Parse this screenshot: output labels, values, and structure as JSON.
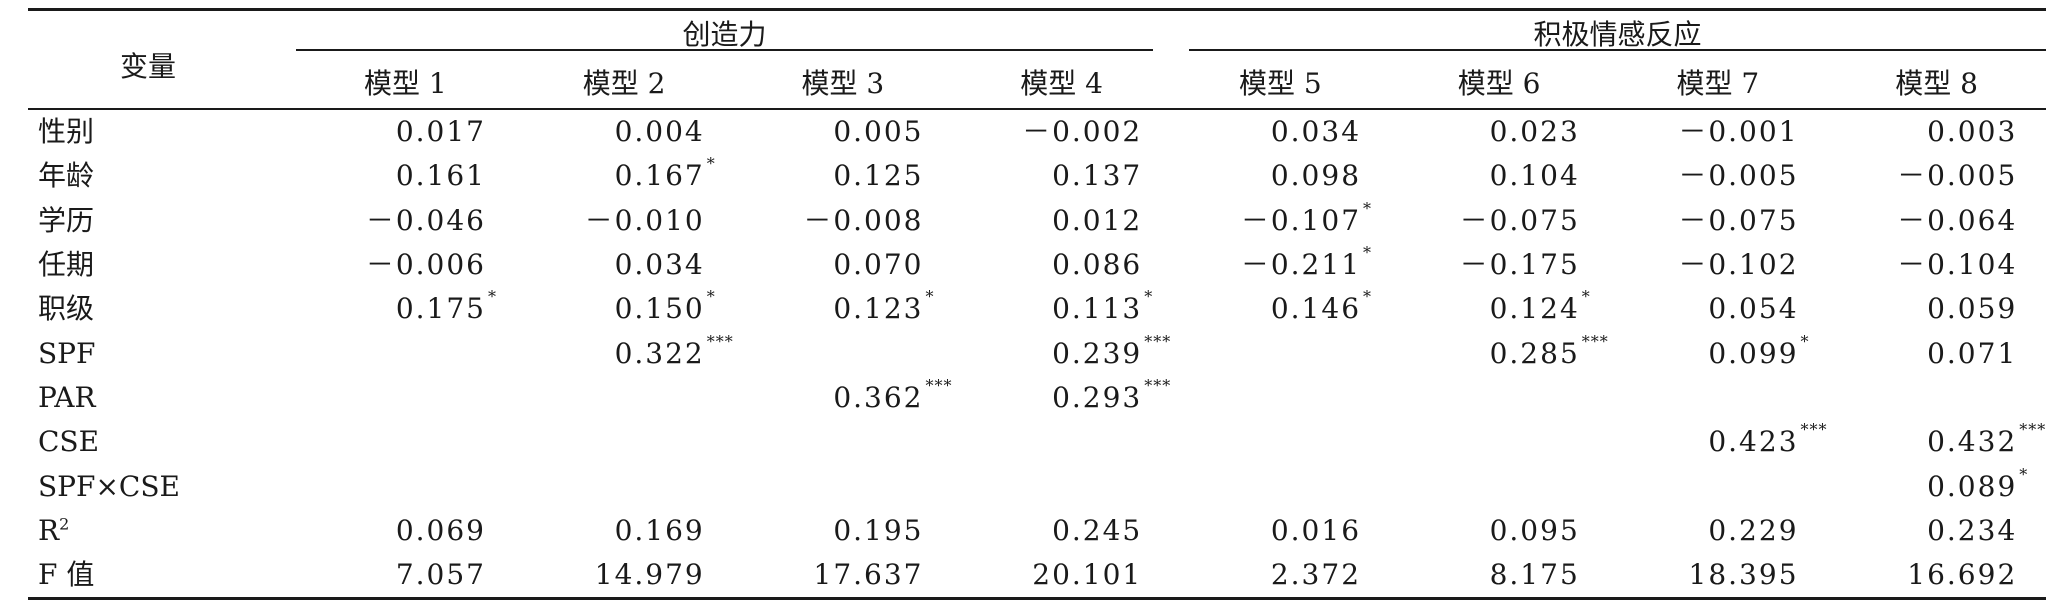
{
  "header": {
    "var_label": "变量",
    "groups": [
      {
        "label": "创造力"
      },
      {
        "label": "积极情感反应"
      }
    ],
    "models": [
      "模型 1",
      "模型 2",
      "模型 3",
      "模型 4",
      "模型 5",
      "模型 6",
      "模型 7",
      "模型 8"
    ]
  },
  "rows": [
    {
      "label": "性别",
      "cells": [
        {
          "v": "0.017",
          "s": ""
        },
        {
          "v": "0.004",
          "s": ""
        },
        {
          "v": "0.005",
          "s": ""
        },
        {
          "v": "－0.002",
          "s": ""
        },
        {
          "v": "0.034",
          "s": ""
        },
        {
          "v": "0.023",
          "s": ""
        },
        {
          "v": "－0.001",
          "s": ""
        },
        {
          "v": "0.003",
          "s": ""
        }
      ]
    },
    {
      "label": "年龄",
      "cells": [
        {
          "v": "0.161",
          "s": ""
        },
        {
          "v": "0.167",
          "s": "*"
        },
        {
          "v": "0.125",
          "s": ""
        },
        {
          "v": "0.137",
          "s": ""
        },
        {
          "v": "0.098",
          "s": ""
        },
        {
          "v": "0.104",
          "s": ""
        },
        {
          "v": "－0.005",
          "s": ""
        },
        {
          "v": "－0.005",
          "s": ""
        }
      ]
    },
    {
      "label": "学历",
      "cells": [
        {
          "v": "－0.046",
          "s": ""
        },
        {
          "v": "－0.010",
          "s": ""
        },
        {
          "v": "－0.008",
          "s": ""
        },
        {
          "v": "0.012",
          "s": ""
        },
        {
          "v": "－0.107",
          "s": "*"
        },
        {
          "v": "－0.075",
          "s": ""
        },
        {
          "v": "－0.075",
          "s": ""
        },
        {
          "v": "－0.064",
          "s": ""
        }
      ]
    },
    {
      "label": "任期",
      "cells": [
        {
          "v": "－0.006",
          "s": ""
        },
        {
          "v": "0.034",
          "s": ""
        },
        {
          "v": "0.070",
          "s": ""
        },
        {
          "v": "0.086",
          "s": ""
        },
        {
          "v": "－0.211",
          "s": "*"
        },
        {
          "v": "－0.175",
          "s": ""
        },
        {
          "v": "－0.102",
          "s": ""
        },
        {
          "v": "－0.104",
          "s": ""
        }
      ]
    },
    {
      "label": "职级",
      "cells": [
        {
          "v": "0.175",
          "s": "*"
        },
        {
          "v": "0.150",
          "s": "*"
        },
        {
          "v": "0.123",
          "s": "*"
        },
        {
          "v": "0.113",
          "s": "*"
        },
        {
          "v": "0.146",
          "s": "*"
        },
        {
          "v": "0.124",
          "s": "*"
        },
        {
          "v": "0.054",
          "s": ""
        },
        {
          "v": "0.059",
          "s": ""
        }
      ]
    },
    {
      "label": "SPF",
      "cells": [
        {
          "v": "",
          "s": ""
        },
        {
          "v": "0.322",
          "s": "***"
        },
        {
          "v": "",
          "s": ""
        },
        {
          "v": "0.239",
          "s": "***"
        },
        {
          "v": "",
          "s": ""
        },
        {
          "v": "0.285",
          "s": "***"
        },
        {
          "v": "0.099",
          "s": "*"
        },
        {
          "v": "0.071",
          "s": ""
        }
      ]
    },
    {
      "label": "PAR",
      "cells": [
        {
          "v": "",
          "s": ""
        },
        {
          "v": "",
          "s": ""
        },
        {
          "v": "0.362",
          "s": "***"
        },
        {
          "v": "0.293",
          "s": "***"
        },
        {
          "v": "",
          "s": ""
        },
        {
          "v": "",
          "s": ""
        },
        {
          "v": "",
          "s": ""
        },
        {
          "v": "",
          "s": ""
        }
      ]
    },
    {
      "label": "CSE",
      "cells": [
        {
          "v": "",
          "s": ""
        },
        {
          "v": "",
          "s": ""
        },
        {
          "v": "",
          "s": ""
        },
        {
          "v": "",
          "s": ""
        },
        {
          "v": "",
          "s": ""
        },
        {
          "v": "",
          "s": ""
        },
        {
          "v": "0.423",
          "s": "***"
        },
        {
          "v": "0.432",
          "s": "***"
        }
      ]
    },
    {
      "label": "SPF×CSE",
      "cells": [
        {
          "v": "",
          "s": ""
        },
        {
          "v": "",
          "s": ""
        },
        {
          "v": "",
          "s": ""
        },
        {
          "v": "",
          "s": ""
        },
        {
          "v": "",
          "s": ""
        },
        {
          "v": "",
          "s": ""
        },
        {
          "v": "",
          "s": ""
        },
        {
          "v": "0.089",
          "s": "*"
        }
      ]
    },
    {
      "label": "R",
      "sup": "2",
      "cells": [
        {
          "v": "0.069",
          "s": ""
        },
        {
          "v": "0.169",
          "s": ""
        },
        {
          "v": "0.195",
          "s": ""
        },
        {
          "v": "0.245",
          "s": ""
        },
        {
          "v": "0.016",
          "s": ""
        },
        {
          "v": "0.095",
          "s": ""
        },
        {
          "v": "0.229",
          "s": ""
        },
        {
          "v": "0.234",
          "s": ""
        }
      ]
    },
    {
      "label": "F 值",
      "cells": [
        {
          "v": "7.057",
          "s": ""
        },
        {
          "v": "14.979",
          "s": ""
        },
        {
          "v": "17.637",
          "s": ""
        },
        {
          "v": "20.101",
          "s": ""
        },
        {
          "v": "2.372",
          "s": ""
        },
        {
          "v": "8.175",
          "s": ""
        },
        {
          "v": "18.395",
          "s": ""
        },
        {
          "v": "16.692",
          "s": ""
        }
      ]
    }
  ]
}
